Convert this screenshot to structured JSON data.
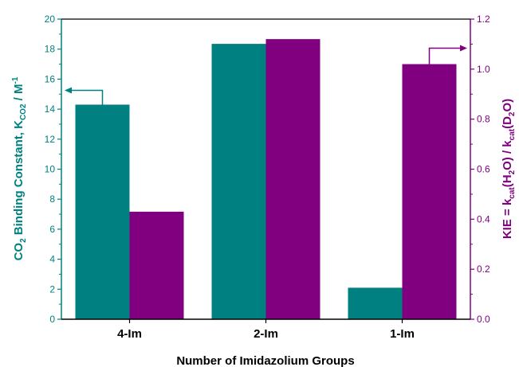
{
  "chart_data": {
    "type": "bar",
    "categories": [
      "4-Im",
      "2-Im",
      "1-Im"
    ],
    "xlabel": "Number of Imidazolium Groups",
    "ylabel_left": {
      "main": "CO",
      "sub1": "2",
      "mid": " Binding Constant, K",
      "sub2": "CO2",
      "end": " / M",
      "sup": "-1"
    },
    "ylabel_right": {
      "t1": "KIE = k",
      "s1": "cat",
      "t2": "(H",
      "s2": "2",
      "t3": "O) / k",
      "s3": "cat",
      "t4": "(D",
      "s4": "2",
      "t5": "O)"
    },
    "ylim_left": [
      0,
      20
    ],
    "ylim_right": [
      0,
      1.2
    ],
    "left_ticks": [
      "0",
      "2",
      "4",
      "6",
      "8",
      "10",
      "12",
      "14",
      "16",
      "18",
      "20"
    ],
    "right_ticks": [
      "0.0",
      "0.2",
      "0.4",
      "0.6",
      "0.8",
      "1.0",
      "1.2"
    ],
    "series": [
      {
        "values": [
          14.3,
          18.35,
          2.1
        ],
        "axis": "left",
        "color": "#008080"
      },
      {
        "values": [
          0.43,
          1.12,
          1.02
        ],
        "axis": "right",
        "color": "#800080"
      }
    ],
    "left_color": "#008080",
    "right_color": "#800080"
  }
}
